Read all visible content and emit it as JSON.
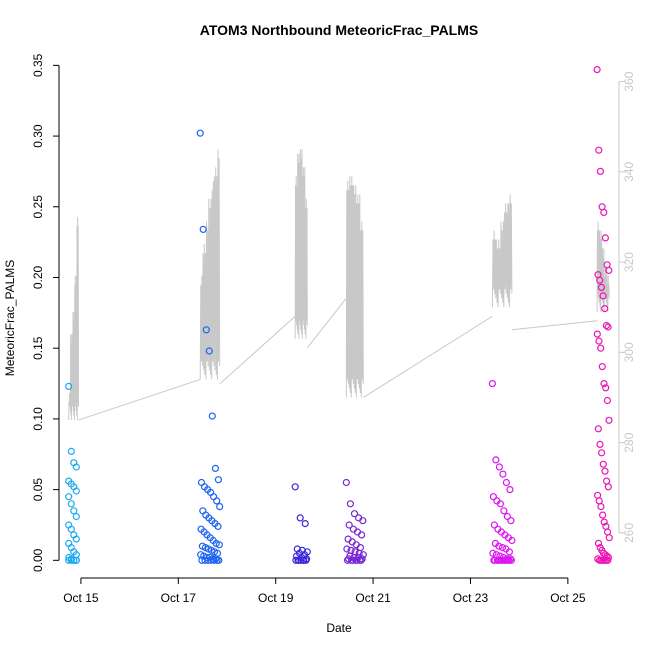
{
  "chart_data": {
    "type": "scatter",
    "title": "ATOM3 Northbound MeteoricFrac_PALMS",
    "xlabel": "Date",
    "ylabel": "MeteoricFrac_PALMS",
    "x_ticks": [
      "Oct 15",
      "Oct 17",
      "Oct 19",
      "Oct 21",
      "Oct 23",
      "Oct 25"
    ],
    "y_ticks": [
      "0.00",
      "0.05",
      "0.10",
      "0.15",
      "0.20",
      "0.25",
      "0.30",
      "0.35"
    ],
    "y_right_ticks": [
      "260",
      "280",
      "300",
      "320",
      "340",
      "360"
    ],
    "xlim": [
      14.55,
      26.05
    ],
    "ylim": [
      -0.0125,
      0.3545
    ],
    "y_right_lim": [
      250,
      365
    ],
    "grid": false,
    "colors": {
      "axis": "#000000",
      "secondary_axis": "#c8c8c8",
      "trace": "#c8c8c8"
    },
    "flights": [
      {
        "color": "#1eaaf0",
        "x_range": [
          14.75,
          14.95
        ],
        "values": [
          0.123,
          0.077,
          0.069,
          0.066,
          0.056,
          0.054,
          0.052,
          0.049,
          0.045,
          0.04,
          0.035,
          0.031,
          0.025,
          0.022,
          0.018,
          0.015,
          0.012,
          0.009,
          0.006,
          0.004,
          0.002,
          0.001,
          0.0,
          0.0,
          0.0,
          0.0,
          0.0,
          0.0
        ],
        "trace_base": 285,
        "trace_peaks": [
          292,
          305,
          310,
          318,
          331
        ]
      },
      {
        "color": "#1e64f0",
        "x_range": [
          17.45,
          17.85
        ],
        "values": [
          0.302,
          0.234,
          0.163,
          0.148,
          0.102,
          0.065,
          0.057,
          0.055,
          0.052,
          0.05,
          0.048,
          0.045,
          0.042,
          0.038,
          0.035,
          0.032,
          0.03,
          0.028,
          0.026,
          0.024,
          0.022,
          0.02,
          0.018,
          0.016,
          0.014,
          0.012,
          0.011,
          0.01,
          0.009,
          0.008,
          0.007,
          0.006,
          0.005,
          0.004,
          0.003,
          0.002,
          0.002,
          0.001,
          0.001,
          0.0,
          0.0,
          0.0,
          0.0,
          0.0,
          0.0,
          0.0
        ],
        "trace_base": 294,
        "trace_peaks": [
          318,
          325,
          330,
          335,
          339,
          342,
          346
        ]
      },
      {
        "color": "#3c28dc",
        "x_range": [
          19.4,
          19.65
        ],
        "values": [
          0.052,
          0.03,
          0.026,
          0.008,
          0.007,
          0.006,
          0.005,
          0.004,
          0.003,
          0.002,
          0.001,
          0.0,
          0.0,
          0.0,
          0.0,
          0.0,
          0.0,
          0.0
        ],
        "trace_base": 303,
        "trace_peaks": [
          340,
          345,
          346,
          342,
          335
        ]
      },
      {
        "color": "#7828d2",
        "x_range": [
          20.45,
          20.8
        ],
        "values": [
          0.055,
          0.04,
          0.033,
          0.03,
          0.028,
          0.025,
          0.022,
          0.02,
          0.018,
          0.015,
          0.013,
          0.011,
          0.009,
          0.008,
          0.007,
          0.006,
          0.005,
          0.004,
          0.003,
          0.002,
          0.002,
          0.001,
          0.001,
          0.0,
          0.0,
          0.0,
          0.0,
          0.0,
          0.0,
          0.0
        ],
        "trace_base": 290,
        "trace_peaks": [
          339,
          340,
          338,
          336,
          330
        ]
      },
      {
        "color": "#dc14f0",
        "x_range": [
          23.45,
          23.85
        ],
        "values": [
          0.125,
          0.071,
          0.066,
          0.061,
          0.055,
          0.05,
          0.045,
          0.042,
          0.04,
          0.035,
          0.031,
          0.028,
          0.025,
          0.022,
          0.02,
          0.018,
          0.016,
          0.014,
          0.012,
          0.01,
          0.009,
          0.008,
          0.006,
          0.005,
          0.004,
          0.003,
          0.002,
          0.001,
          0.001,
          0.0,
          0.0,
          0.0,
          0.0,
          0.0,
          0.0,
          0.0,
          0.0,
          0.0,
          0.0,
          0.0
        ],
        "trace_base": 310,
        "trace_peaks": [
          328,
          326,
          330,
          334,
          336
        ]
      },
      {
        "color": "#ec14b4",
        "x_range": [
          25.6,
          25.85
        ],
        "values": [
          0.347,
          0.29,
          0.275,
          0.25,
          0.246,
          0.228,
          0.209,
          0.205,
          0.202,
          0.198,
          0.193,
          0.187,
          0.178,
          0.166,
          0.165,
          0.16,
          0.155,
          0.15,
          0.137,
          0.125,
          0.122,
          0.113,
          0.099,
          0.093,
          0.082,
          0.076,
          0.068,
          0.063,
          0.056,
          0.052,
          0.046,
          0.042,
          0.038,
          0.032,
          0.027,
          0.024,
          0.02,
          0.016,
          0.012,
          0.009,
          0.007,
          0.005,
          0.004,
          0.003,
          0.002,
          0.001,
          0.0,
          0.0,
          0.0,
          0.0,
          0.0,
          0.0
        ],
        "trace_base": 309,
        "trace_peaks": [
          330,
          328,
          324,
          320,
          318
        ]
      }
    ],
    "trace_connectors": [
      {
        "from": [
          14.95,
          285
        ],
        "to": [
          17.45,
          294
        ]
      },
      {
        "from": [
          17.85,
          293
        ],
        "to": [
          19.4,
          308
        ]
      },
      {
        "from": [
          19.65,
          301
        ],
        "to": [
          20.45,
          312
        ]
      },
      {
        "from": [
          20.8,
          290
        ],
        "to": [
          23.45,
          308
        ]
      },
      {
        "from": [
          23.85,
          305
        ],
        "to": [
          25.6,
          307
        ]
      }
    ]
  }
}
